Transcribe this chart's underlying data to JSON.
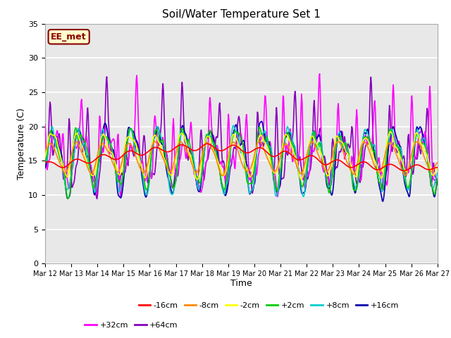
{
  "title": "Soil/Water Temperature Set 1",
  "xlabel": "Time",
  "ylabel": "Temperature (C)",
  "ylim": [
    0,
    35
  ],
  "yticks": [
    0,
    5,
    10,
    15,
    20,
    25,
    30,
    35
  ],
  "date_labels": [
    "Mar 12",
    "Mar 13",
    "Mar 14",
    "Mar 15",
    "Mar 16",
    "Mar 17",
    "Mar 18",
    "Mar 19",
    "Mar 20",
    "Mar 21",
    "Mar 22",
    "Mar 23",
    "Mar 24",
    "Mar 25",
    "Mar 26",
    "Mar 27"
  ],
  "annotation_text": "EE_met",
  "annotation_bg": "#ffffcc",
  "annotation_border": "#8b0000",
  "series_colors": {
    "-16cm": "#ff0000",
    "-8cm": "#ff8800",
    "-2cm": "#ffff00",
    "+2cm": "#00cc00",
    "+8cm": "#00cccc",
    "+16cm": "#0000aa",
    "+32cm": "#ff00ff",
    "+64cm": "#8800bb"
  },
  "background_color": "#e8e8e8",
  "grid_color": "#ffffff"
}
